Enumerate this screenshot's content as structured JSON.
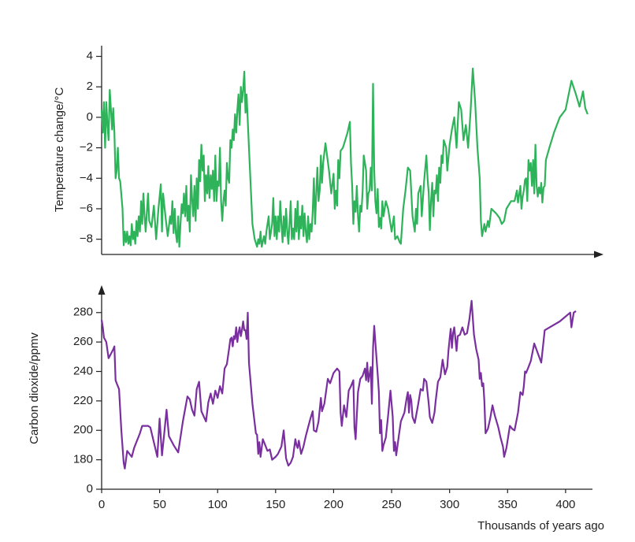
{
  "chart_data": [
    {
      "type": "line",
      "ylabel": "Temperature change/°C",
      "color": "#2fb35a",
      "xlim": [
        0,
        432
      ],
      "ylim": [
        -9,
        4.7
      ],
      "yticks": [
        {
          "value": -8,
          "label": "−8"
        },
        {
          "value": -6,
          "label": "−6"
        },
        {
          "value": -4,
          "label": "−4"
        },
        {
          "value": -2,
          "label": "−2"
        },
        0,
        2,
        4
      ],
      "x": [
        0,
        1,
        2,
        3,
        4,
        5,
        6,
        7,
        8,
        9,
        10,
        11,
        12,
        13,
        14,
        15,
        16,
        18,
        19,
        20,
        21,
        22,
        23,
        24,
        25,
        26,
        27,
        28,
        29,
        30,
        31,
        32,
        33,
        34,
        35,
        36,
        37,
        38,
        40,
        41,
        43,
        45,
        47,
        49,
        51,
        52,
        53,
        55,
        57,
        59,
        60,
        61,
        62,
        63,
        64,
        65,
        66,
        67,
        68,
        69,
        70,
        71,
        72,
        73,
        74,
        75,
        76,
        77,
        78,
        79,
        80,
        81,
        82,
        83,
        84,
        85,
        86,
        87,
        88,
        89,
        90,
        91,
        92,
        93,
        94,
        95,
        96,
        97,
        98,
        99,
        100,
        101,
        102,
        103,
        104,
        105,
        106,
        107,
        108,
        109,
        110,
        111,
        112,
        113,
        114,
        115,
        116,
        117,
        118,
        119,
        120,
        121,
        122,
        123,
        124,
        125,
        127,
        130,
        132,
        134,
        135,
        136,
        137,
        138,
        140,
        141,
        142,
        144,
        145,
        147,
        148,
        149,
        150,
        151,
        152,
        153,
        154,
        155,
        156,
        157,
        158,
        159,
        160,
        161,
        162,
        163,
        164,
        165,
        166,
        167,
        168,
        169,
        170,
        171,
        172,
        173,
        174,
        175,
        176,
        177,
        178,
        179,
        180,
        181,
        182,
        183,
        184,
        185,
        186,
        187,
        188,
        189,
        190,
        191,
        193,
        196,
        198,
        200,
        201,
        202,
        203,
        204,
        205,
        206,
        208,
        210,
        212,
        214,
        215,
        216,
        217,
        218,
        219,
        220,
        221,
        222,
        223,
        224,
        225,
        226,
        228,
        229,
        230,
        231,
        232,
        233,
        234,
        235,
        236,
        237,
        238,
        239,
        240,
        241,
        242,
        243,
        245,
        247,
        250,
        252,
        253,
        255,
        257,
        258,
        260,
        262,
        264,
        266,
        268,
        270,
        271,
        272,
        273,
        275,
        276,
        278,
        280,
        281,
        282,
        283,
        284,
        285,
        286,
        287,
        288,
        289,
        290,
        291,
        292,
        293,
        294,
        295,
        297,
        298,
        300,
        302,
        304,
        306,
        308,
        310,
        312,
        314,
        316,
        318,
        320,
        322,
        324,
        326,
        327,
        328,
        330,
        331,
        333,
        334,
        336,
        340,
        343,
        345,
        347,
        349,
        353,
        356,
        358,
        359,
        361,
        362,
        363,
        364,
        365,
        366,
        367,
        368,
        369,
        370,
        371,
        372,
        373,
        374,
        375,
        376,
        377,
        378,
        379,
        380,
        381,
        382,
        383,
        386,
        390,
        395,
        400,
        405,
        409,
        412,
        415,
        417,
        419
      ],
      "values": [
        0.5,
        -1,
        1,
        -2,
        1,
        -0.5,
        -1.5,
        1.8,
        0.5,
        -0.8,
        0.6,
        -1,
        -4,
        -3.5,
        -2,
        -4,
        -4.2,
        -6,
        -8.4,
        -7.5,
        -8.2,
        -7.5,
        -8.3,
        -7.8,
        -8.4,
        -7,
        -8,
        -7.5,
        -8.3,
        -6.8,
        -7.8,
        -6.5,
        -7.5,
        -5.5,
        -7,
        -5,
        -6.5,
        -7.5,
        -5,
        -6.8,
        -7.2,
        -5.8,
        -8,
        -6,
        -4.4,
        -7.5,
        -5,
        -6.5,
        -7.8,
        -6.5,
        -7,
        -5.5,
        -7.6,
        -6,
        -7.6,
        -8.2,
        -6.5,
        -8.5,
        -7,
        -5.7,
        -6.3,
        -5,
        -6.5,
        -4.5,
        -6.8,
        -5.8,
        -7.5,
        -3.8,
        -5.3,
        -6.5,
        -4.5,
        -6.8,
        -4,
        -6,
        -2.8,
        -4.2,
        -1.8,
        -3.5,
        -2.5,
        -5.5,
        -3.8,
        -5,
        -3.2,
        -5.3,
        -3.8,
        -4.7,
        -3.5,
        -5.5,
        -2.5,
        -5.5,
        -4.2,
        -4.5,
        -2,
        -5.5,
        -6.8,
        -5.5,
        -4.8,
        -5.8,
        -3,
        -4,
        -4.3,
        -1.5,
        -2,
        -0.8,
        -1.5,
        0.2,
        -1,
        0.5,
        1.5,
        -0.5,
        2,
        1,
        1.8,
        3,
        0.3,
        1.5,
        -2,
        -7,
        -8,
        -8.5,
        -8,
        -8.3,
        -7.5,
        -8.5,
        -7.8,
        -8.3,
        -7.5,
        -6.5,
        -8,
        -7,
        -5.3,
        -7.8,
        -6.5,
        -8,
        -6.5,
        -7.5,
        -5.5,
        -7,
        -8.2,
        -6.5,
        -7.8,
        -6,
        -7.5,
        -8.3,
        -7,
        -5.5,
        -8,
        -7.3,
        -8,
        -6,
        -7.5,
        -5.5,
        -8,
        -6.5,
        -7.3,
        -5.8,
        -7.8,
        -6.3,
        -7.5,
        -8.2,
        -6.5,
        -8,
        -7,
        -7.5,
        -6.2,
        -4,
        -7,
        -5,
        -3.3,
        -5.5,
        -4.8,
        -2.5,
        -4.3,
        -3,
        -1.7,
        -3.5,
        -5,
        -3.7,
        -6,
        -4.8,
        -5.8,
        -2.8,
        -4,
        -2.2,
        -2,
        -1.5,
        -1,
        -0.3,
        -3,
        -4.5,
        -7,
        -5.5,
        -6.2,
        -4.5,
        -6.5,
        -7.5,
        -5.8,
        -6.2,
        -4.8,
        -2.5,
        -3.5,
        -6,
        -5,
        -4.8,
        -3.3,
        -4.8,
        2.2,
        -3.5,
        -5.5,
        -6.3,
        -4.7,
        -7.2,
        -6.6,
        -7.3,
        -5.5,
        -6.5,
        -5.5,
        -6,
        -7.5,
        -6.5,
        -8,
        -7.8,
        -8.2,
        -8.3,
        -6,
        -4.8,
        -3.3,
        -3.5,
        -6.5,
        -7.5,
        -6,
        -7,
        -5,
        -4.5,
        -6.5,
        -4.2,
        -2.5,
        -4,
        -5,
        -7.4,
        -5.5,
        -4.3,
        -6.5,
        -4.8,
        -5,
        -3.8,
        -5.5,
        -3.3,
        -4.3,
        -2.5,
        -3,
        -1.5,
        -2,
        -3.5,
        -1.8,
        -0.8,
        0,
        -2,
        1,
        0.5,
        -1.5,
        -0.5,
        -2,
        0.3,
        3.2,
        1,
        -2,
        -4,
        -6.8,
        -7.8,
        -7,
        -7.5,
        -6.8,
        -7.2,
        -6,
        -6.3,
        -6.6,
        -7,
        -6.8,
        -6,
        -5.5,
        -5.5,
        -4.8,
        -5.6,
        -4.5,
        -6,
        -5.2,
        -4.8,
        -4.1,
        -4,
        -5.5,
        -2.8,
        -3.5,
        -3,
        -4.5,
        -2.8,
        -5,
        -1.8,
        -4.5,
        -5.2,
        -4.6,
        -5,
        -4.3,
        -5.6,
        -4.6,
        -4.5,
        -2.8,
        -2,
        -1,
        0,
        0.5,
        2.4,
        1.5,
        0.7,
        1.7,
        0.6,
        0.2
      ]
    },
    {
      "type": "line",
      "ylabel": "Carbon dioxide/ppmv",
      "xlabel": "Thousands of years ago",
      "color": "#7a2f9f",
      "xlim": [
        0,
        432
      ],
      "xticks": [
        0,
        50,
        100,
        150,
        200,
        250,
        300,
        350,
        400
      ],
      "ylim": [
        0,
        297
      ],
      "axis_break": true,
      "yticks": [
        0,
        180,
        200,
        220,
        240,
        260,
        280
      ],
      "x": [
        0,
        1,
        2,
        4,
        6,
        8,
        10,
        11,
        12,
        13,
        15,
        17,
        19,
        20,
        22,
        26,
        28,
        33,
        35,
        40,
        42,
        48,
        50,
        52,
        54,
        56,
        58,
        62,
        66,
        70,
        74,
        76,
        78,
        80,
        82,
        84,
        86,
        90,
        92,
        94,
        96,
        98,
        100,
        102,
        104,
        106,
        108,
        110,
        111,
        112,
        113,
        114,
        115,
        116,
        117,
        118,
        119,
        120,
        121,
        122,
        123,
        124,
        125,
        126,
        127,
        130,
        133,
        134,
        135,
        136,
        137,
        139,
        141,
        143,
        145,
        147,
        150,
        152,
        155,
        157,
        159,
        161,
        163,
        165,
        167,
        168,
        169,
        170,
        172,
        174,
        176,
        180,
        182,
        183,
        185,
        187,
        189,
        190,
        192,
        195,
        197,
        200,
        203,
        205,
        206,
        207,
        209,
        211,
        213,
        215,
        217,
        218,
        219,
        221,
        223,
        225,
        227,
        228,
        229,
        230,
        231,
        232,
        233,
        234,
        235,
        236,
        238,
        239,
        240,
        241,
        242,
        243,
        245,
        247,
        249,
        251,
        252,
        253,
        254,
        256,
        258,
        261,
        263,
        264,
        265,
        266,
        267,
        268,
        270,
        273,
        275,
        277,
        278,
        280,
        282,
        283,
        285,
        287,
        288,
        290,
        292,
        294,
        296,
        298,
        299,
        300,
        301,
        302,
        303,
        304,
        306,
        307,
        309,
        311,
        313,
        315,
        317,
        319,
        321,
        323,
        325,
        326,
        327,
        328,
        329,
        330,
        331,
        333,
        335,
        337,
        339,
        342,
        344,
        346,
        347,
        349,
        352,
        354,
        356,
        359,
        361,
        363,
        364,
        365,
        366,
        367,
        368,
        370,
        373,
        379,
        382,
        395,
        404,
        405,
        407,
        409
      ],
      "values": [
        275,
        270,
        263,
        260,
        249,
        252,
        255,
        257,
        234,
        232,
        228,
        200,
        178,
        174,
        186,
        182,
        188,
        198,
        203,
        203,
        202,
        182,
        208,
        183,
        198,
        214,
        196,
        190,
        185,
        206,
        223,
        221,
        214,
        210,
        228,
        233,
        213,
        206,
        219,
        225,
        218,
        227,
        222,
        230,
        225,
        242,
        245,
        256,
        262,
        263,
        257,
        264,
        262,
        270,
        260,
        266,
        270,
        264,
        268,
        274,
        268,
        268,
        262,
        280,
        246,
        218,
        198,
        197,
        184,
        192,
        182,
        194,
        190,
        186,
        187,
        180,
        182,
        184,
        189,
        200,
        181,
        176,
        178,
        182,
        194,
        190,
        188,
        193,
        184,
        189,
        196,
        208,
        213,
        200,
        199,
        206,
        222,
        213,
        218,
        235,
        232,
        239,
        242,
        240,
        212,
        203,
        217,
        209,
        227,
        230,
        234,
        202,
        194,
        226,
        235,
        237,
        242,
        234,
        246,
        233,
        238,
        243,
        218,
        256,
        271,
        260,
        238,
        226,
        198,
        207,
        186,
        190,
        195,
        210,
        227,
        209,
        186,
        192,
        183,
        195,
        206,
        212,
        222,
        226,
        212,
        224,
        220,
        209,
        205,
        218,
        228,
        227,
        235,
        233,
        218,
        209,
        205,
        212,
        220,
        233,
        236,
        248,
        238,
        243,
        254,
        262,
        269,
        256,
        266,
        270,
        254,
        264,
        265,
        270,
        265,
        266,
        275,
        288,
        265,
        255,
        248,
        235,
        239,
        230,
        232,
        220,
        198,
        201,
        208,
        217,
        210,
        202,
        195,
        189,
        182,
        188,
        203,
        201,
        200,
        212,
        226,
        224,
        230,
        240,
        239,
        241,
        243,
        247,
        259,
        246,
        268,
        274,
        280,
        270,
        280,
        281
      ]
    }
  ]
}
